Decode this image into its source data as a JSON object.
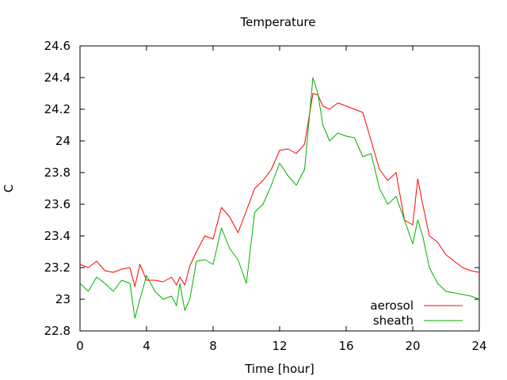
{
  "chart_data": {
    "type": "line",
    "title": "Temperature",
    "xlabel": "Time [hour]",
    "ylabel": "C",
    "xlim": [
      0,
      24
    ],
    "ylim": [
      22.8,
      24.6
    ],
    "xticks": [
      0,
      4,
      8,
      12,
      16,
      20,
      24
    ],
    "yticks": [
      22.8,
      23,
      23.2,
      23.4,
      23.6,
      23.8,
      24,
      24.2,
      24.4,
      24.6
    ],
    "xtick_labels": [
      "0",
      "4",
      "8",
      "12",
      "16",
      "20",
      "24"
    ],
    "ytick_labels": [
      "22.8",
      "23",
      "23.2",
      "23.4",
      "23.6",
      "23.8",
      "24",
      "24.2",
      "24.4",
      "24.6"
    ],
    "grid": false,
    "legend": "bottom-right",
    "series": [
      {
        "name": "aerosol",
        "color": "#ff0000",
        "x": [
          0,
          0.5,
          1,
          1.5,
          2,
          2.5,
          3,
          3.3,
          3.6,
          4,
          4.5,
          5,
          5.5,
          5.8,
          6,
          6.3,
          6.6,
          7,
          7.5,
          8,
          8.5,
          9,
          9.5,
          10,
          10.5,
          11,
          11.5,
          12,
          12.5,
          13,
          13.5,
          14,
          14.3,
          14.6,
          15,
          15.5,
          16,
          16.5,
          17,
          17.5,
          18,
          18.5,
          19,
          19.5,
          20,
          20.3,
          20.6,
          21,
          21.5,
          22,
          22.5,
          23,
          23.5,
          24
        ],
        "y": [
          23.22,
          23.2,
          23.24,
          23.18,
          23.17,
          23.19,
          23.2,
          23.08,
          23.22,
          23.12,
          23.12,
          23.11,
          23.14,
          23.09,
          23.14,
          23.09,
          23.21,
          23.3,
          23.4,
          23.38,
          23.58,
          23.52,
          23.42,
          23.56,
          23.7,
          23.75,
          23.82,
          23.94,
          23.95,
          23.92,
          23.98,
          24.3,
          24.29,
          24.22,
          24.2,
          24.24,
          24.22,
          24.2,
          24.18,
          24.0,
          23.82,
          23.75,
          23.8,
          23.5,
          23.47,
          23.76,
          23.6,
          23.4,
          23.36,
          23.28,
          23.24,
          23.2,
          23.18,
          23.17
        ]
      },
      {
        "name": "sheath",
        "color": "#00b000",
        "x": [
          0,
          0.5,
          1,
          1.5,
          2,
          2.5,
          3,
          3.3,
          3.6,
          4,
          4.5,
          5,
          5.5,
          5.8,
          6,
          6.3,
          6.6,
          7,
          7.5,
          8,
          8.5,
          9,
          9.5,
          10,
          10.5,
          11,
          11.5,
          12,
          12.5,
          13,
          13.5,
          14,
          14.3,
          14.6,
          15,
          15.5,
          16,
          16.5,
          17,
          17.5,
          18,
          18.5,
          19,
          19.5,
          20,
          20.3,
          20.6,
          21,
          21.5,
          22,
          22.5,
          23,
          23.5,
          24
        ],
        "y": [
          23.1,
          23.05,
          23.14,
          23.1,
          23.05,
          23.12,
          23.1,
          22.88,
          23.0,
          23.15,
          23.05,
          23.0,
          23.02,
          22.96,
          23.1,
          22.93,
          23.0,
          23.24,
          23.25,
          23.22,
          23.45,
          23.32,
          23.25,
          23.1,
          23.55,
          23.6,
          23.72,
          23.86,
          23.78,
          23.72,
          23.82,
          24.4,
          24.3,
          24.1,
          24.0,
          24.05,
          24.03,
          24.02,
          23.9,
          23.92,
          23.7,
          23.6,
          23.65,
          23.5,
          23.35,
          23.5,
          23.4,
          23.2,
          23.1,
          23.05,
          23.04,
          23.03,
          23.02,
          23.0
        ]
      }
    ]
  }
}
